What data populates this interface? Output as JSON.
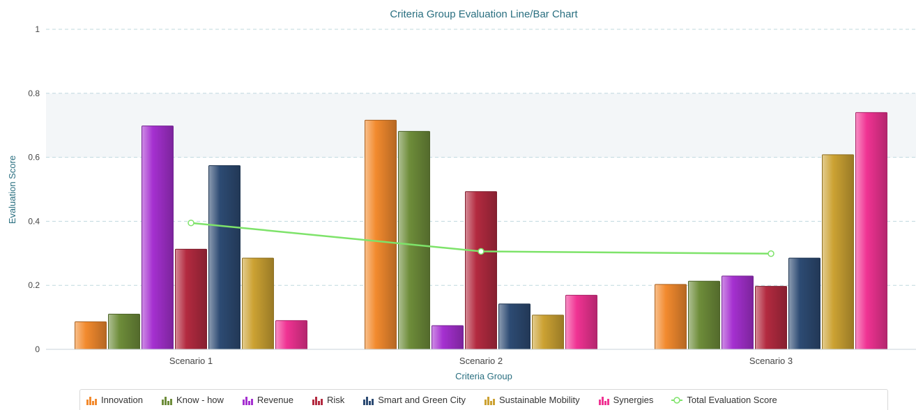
{
  "chart_data": {
    "type": "bar",
    "title": "Criteria Group Evaluation Line/Bar Chart",
    "xlabel": "Criteria Group",
    "ylabel": "Evaluation Score",
    "ylim": [
      0,
      1
    ],
    "yticks": [
      "0",
      "0.2",
      "0.4",
      "0.6",
      "0.8",
      "1"
    ],
    "categories": [
      "Scenario 1",
      "Scenario 2",
      "Scenario 3"
    ],
    "grid": true,
    "legend_position": "bottom",
    "series": [
      {
        "name": "Innovation",
        "type": "bar",
        "color": "#f28a2e",
        "values": [
          0.086,
          0.716,
          0.203
        ]
      },
      {
        "name": "Know - how",
        "type": "bar",
        "color": "#6e8d3a",
        "values": [
          0.11,
          0.681,
          0.213
        ]
      },
      {
        "name": "Revenue",
        "type": "bar",
        "color": "#a530d0",
        "values": [
          0.698,
          0.074,
          0.229
        ]
      },
      {
        "name": "Risk",
        "type": "bar",
        "color": "#b32a40",
        "values": [
          0.313,
          0.493,
          0.197
        ]
      },
      {
        "name": "Smart and Green City",
        "type": "bar",
        "color": "#2d4b73",
        "values": [
          0.574,
          0.142,
          0.285
        ]
      },
      {
        "name": "Sustainable Mobility",
        "type": "bar",
        "color": "#cca233",
        "values": [
          0.285,
          0.107,
          0.608
        ]
      },
      {
        "name": "Synergies",
        "type": "bar",
        "color": "#f03393",
        "values": [
          0.09,
          0.169,
          0.74
        ]
      },
      {
        "name": "Total Evaluation Score",
        "type": "line",
        "color": "#7ee36a",
        "values": [
          0.395,
          0.306,
          0.299
        ]
      }
    ]
  }
}
